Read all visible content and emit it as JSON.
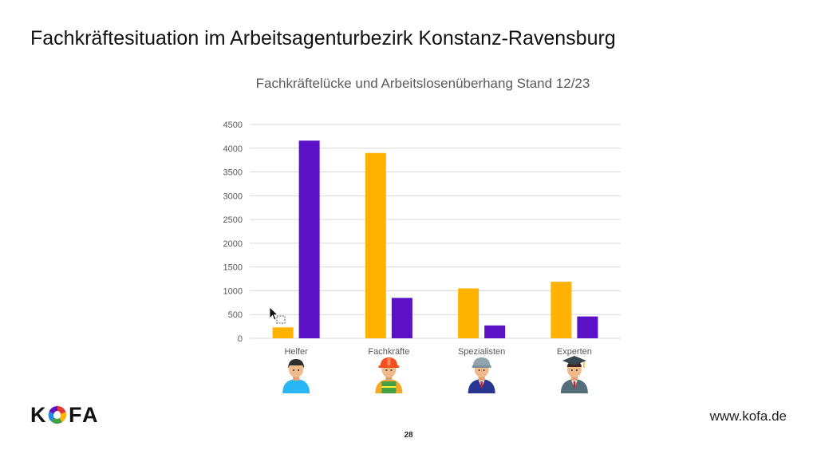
{
  "slide": {
    "title": "Fachkräftesituation im Arbeitsagenturbezirk Konstanz-Ravensburg",
    "website": "www.kofa.de",
    "page_number": "28"
  },
  "logo": {
    "text": "KOFA",
    "letters": [
      "K",
      "F",
      "A"
    ]
  },
  "colors": {
    "series1": "#FFB300",
    "series2": "#5B12C6",
    "grid": "#D9D9D9",
    "axis_text": "#595959"
  },
  "icons": [
    "helper-person-icon",
    "craftsman-hardhat-icon",
    "specialist-helmet-icon",
    "expert-graduate-icon"
  ],
  "chart_data": {
    "type": "bar",
    "title": "Fachkräftelücke und Arbeitslosenüberhang Stand 12/23",
    "categories": [
      "Helfer",
      "Fachkräfte",
      "Spezialisten",
      "Experten"
    ],
    "series": [
      {
        "values": [
          230,
          3900,
          1050,
          1190
        ]
      },
      {
        "values": [
          4160,
          850,
          270,
          460
        ]
      }
    ],
    "ylim": [
      0,
      4500
    ],
    "yticks": [
      0,
      500,
      1000,
      1500,
      2000,
      2500,
      3000,
      3500,
      4000,
      4500
    ],
    "grid": true,
    "legend": "none"
  }
}
